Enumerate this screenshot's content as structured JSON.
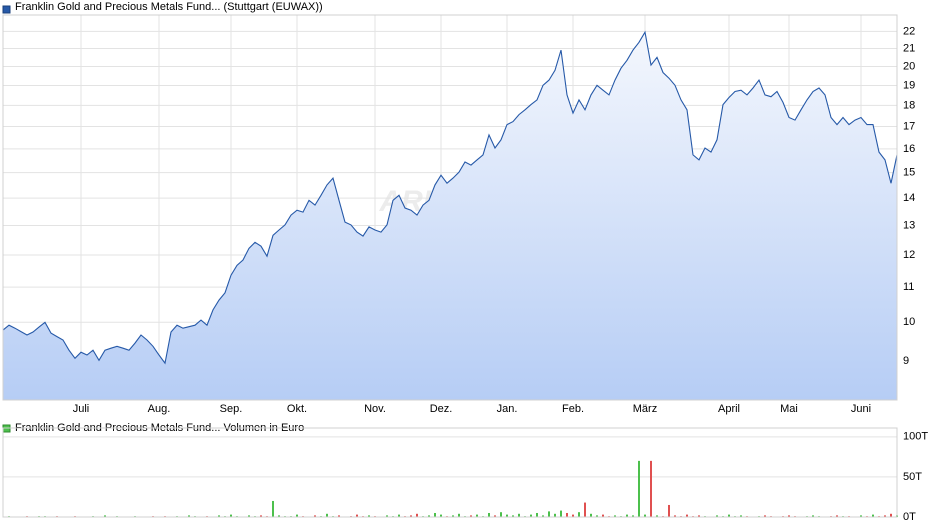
{
  "chart_data": [
    {
      "type": "line",
      "watermark": "ARIVA.DE",
      "series": [
        {
          "name": "Franklin Gold and Precious Metals Fund... (Stuttgart (EUWAX))",
          "color": "#2659a8",
          "values": [
            9.79,
            9.92,
            9.84,
            9.75,
            9.66,
            9.74,
            9.87,
            10.0,
            9.71,
            9.62,
            9.53,
            9.27,
            9.07,
            9.22,
            9.15,
            9.27,
            9.02,
            9.27,
            9.32,
            9.37,
            9.32,
            9.27,
            9.45,
            9.66,
            9.53,
            9.37,
            9.15,
            8.95,
            9.74,
            9.92,
            9.84,
            9.88,
            9.92,
            10.06,
            9.92,
            10.34,
            10.62,
            10.83,
            11.36,
            11.67,
            11.84,
            12.22,
            12.42,
            12.29,
            11.96,
            12.66,
            12.84,
            13.02,
            13.37,
            13.55,
            13.48,
            13.92,
            13.74,
            14.11,
            14.51,
            14.78,
            13.92,
            13.12,
            13.02,
            12.77,
            12.63,
            12.95,
            12.84,
            12.77,
            13.02,
            13.92,
            14.11,
            13.63,
            13.55,
            13.37,
            13.74,
            13.92,
            14.51,
            14.9,
            14.58,
            14.78,
            15.02,
            15.44,
            15.31,
            15.53,
            15.74,
            16.62,
            16.04,
            16.4,
            17.09,
            17.23,
            17.56,
            17.79,
            18.04,
            18.27,
            19.01,
            19.28,
            19.8,
            20.91,
            18.52,
            17.63,
            18.27,
            17.79,
            18.52,
            19.01,
            18.76,
            18.52,
            19.28,
            19.91,
            20.34,
            20.91,
            21.36,
            21.95,
            20.08,
            20.5,
            19.68,
            19.38,
            19.01,
            18.27,
            17.79,
            15.74,
            15.53,
            16.04,
            15.86,
            16.4,
            18.04,
            18.39,
            18.69,
            18.76,
            18.52,
            18.87,
            19.28,
            18.52,
            18.43,
            18.69,
            18.15,
            17.42,
            17.3,
            17.79,
            18.27,
            18.69,
            18.87,
            18.52,
            17.42,
            17.09,
            17.42,
            17.09,
            17.3,
            17.42,
            17.09,
            17.09,
            15.86,
            15.53,
            14.58,
            15.74
          ]
        }
      ],
      "xlim": [
        0,
        149
      ],
      "xticks": [
        {
          "value": 13,
          "label": "Juli"
        },
        {
          "value": 26,
          "label": "Aug."
        },
        {
          "value": 38,
          "label": "Sep."
        },
        {
          "value": 49,
          "label": "Okt."
        },
        {
          "value": 62,
          "label": "Nov."
        },
        {
          "value": 73,
          "label": "Dez."
        },
        {
          "value": 84,
          "label": "Jan."
        },
        {
          "value": 95,
          "label": "Feb."
        },
        {
          "value": 107,
          "label": "März"
        },
        {
          "value": 121,
          "label": "April"
        },
        {
          "value": 131,
          "label": "Mai"
        },
        {
          "value": 143,
          "label": "Juni"
        }
      ],
      "ylim": [
        8.1,
        23
      ],
      "yticks": [
        9,
        10,
        11,
        12,
        13,
        14,
        15,
        16,
        17,
        18,
        19,
        20,
        21,
        22
      ],
      "log_scale": true,
      "grid": true,
      "area_fill": true
    },
    {
      "type": "bar",
      "series": [
        {
          "name": "Franklin Gold and Precious Metals Fund... Volumen in Euro",
          "color": "#4cc04c",
          "values": [
            0,
            1,
            0,
            0,
            1,
            0,
            1,
            1,
            0,
            1,
            0,
            0,
            1,
            0,
            0,
            1,
            0,
            2,
            0,
            1,
            0,
            0,
            1,
            0,
            0,
            1,
            0,
            1,
            0,
            1,
            0,
            2,
            1,
            0,
            1,
            0,
            2,
            1,
            3,
            1,
            0,
            2,
            1,
            2,
            1,
            20,
            2,
            1,
            1,
            3,
            1,
            0,
            2,
            1,
            4,
            1,
            2,
            0,
            1,
            3,
            1,
            2,
            1,
            0,
            2,
            1,
            3,
            1,
            2,
            4,
            1,
            2,
            5,
            3,
            1,
            2,
            4,
            1,
            2,
            3,
            1,
            5,
            2,
            6,
            3,
            2,
            4,
            1,
            3,
            5,
            2,
            7,
            4,
            8,
            5,
            3,
            6,
            18,
            4,
            2,
            3,
            1,
            2,
            1,
            3,
            2,
            70,
            3,
            70,
            2,
            1,
            15,
            2,
            1,
            3,
            1,
            2,
            1,
            0,
            2,
            1,
            3,
            1,
            2,
            1,
            0,
            1,
            2,
            1,
            0,
            1,
            2,
            1,
            0,
            1,
            2,
            1,
            0,
            1,
            2,
            1,
            1,
            0,
            2,
            1,
            3,
            1,
            2,
            4,
            2
          ]
        }
      ],
      "up_color": "#4cc04c",
      "down_color": "#e05050",
      "xlim": [
        0,
        149
      ],
      "ylim": [
        0,
        111
      ],
      "yticks": [
        {
          "value": 0,
          "label": "0T"
        },
        {
          "value": 50,
          "label": "50T"
        },
        {
          "value": 100,
          "label": "100T"
        }
      ],
      "grid": true
    }
  ]
}
